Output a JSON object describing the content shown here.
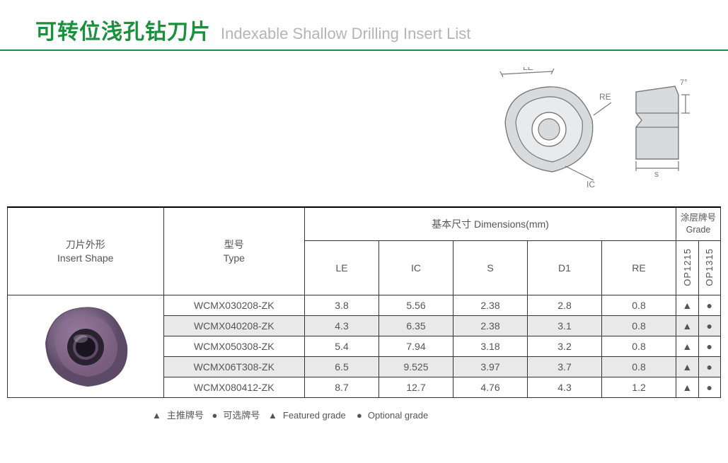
{
  "title": {
    "cn": "可转位浅孔钻刀片",
    "en": "Indexable Shallow Drilling Insert List"
  },
  "diagram": {
    "labels": {
      "le": "LE",
      "re": "RE",
      "ic": "IC",
      "s": "s",
      "angle": "7°"
    },
    "stroke": "#777777",
    "fill": "#d8dadc",
    "fill_dark": "#b8bbbe"
  },
  "headers": {
    "shape": {
      "cn": "刀片外形",
      "en": "Insert Shape"
    },
    "type": {
      "cn": "型号",
      "en": "Type"
    },
    "dims": {
      "cn": "基本尺寸",
      "en": "Dimensions(mm)"
    },
    "grade": {
      "cn": "涂层牌号",
      "en": "Grade"
    },
    "dim_cols": [
      "LE",
      "IC",
      "S",
      "D1",
      "RE"
    ],
    "grade_cols": [
      "OP1215",
      "OP1315"
    ]
  },
  "insert_colors": {
    "body": "#8a6a8f",
    "body_light": "#a98fb3",
    "body_dark": "#5d4a66",
    "hole": "#2b2230"
  },
  "rows": [
    {
      "type": "WCMX030208-ZK",
      "le": "3.8",
      "ic": "5.56",
      "s": "2.38",
      "d1": "2.8",
      "re": "0.8",
      "g1": "▲",
      "g2": "●",
      "alt": false
    },
    {
      "type": "WCMX040208-ZK",
      "le": "4.3",
      "ic": "6.35",
      "s": "2.38",
      "d1": "3.1",
      "re": "0.8",
      "g1": "▲",
      "g2": "●",
      "alt": true
    },
    {
      "type": "WCMX050308-ZK",
      "le": "5.4",
      "ic": "7.94",
      "s": "3.18",
      "d1": "3.2",
      "re": "0.8",
      "g1": "▲",
      "g2": "●",
      "alt": false
    },
    {
      "type": "WCMX06T308-ZK",
      "le": "6.5",
      "ic": "9.525",
      "s": "3.97",
      "d1": "3.7",
      "re": "0.8",
      "g1": "▲",
      "g2": "●",
      "alt": true
    },
    {
      "type": "WCMX080412-ZK",
      "le": "8.7",
      "ic": "12.7",
      "s": "4.76",
      "d1": "4.3",
      "re": "1.2",
      "g1": "▲",
      "g2": "●",
      "alt": false
    }
  ],
  "legend": {
    "tri": "▲",
    "tri_cn": "主推牌号",
    "dot": "●",
    "dot_cn": "可选牌号",
    "tri_en": "Featured grade",
    "dot_en": "Optional grade"
  }
}
